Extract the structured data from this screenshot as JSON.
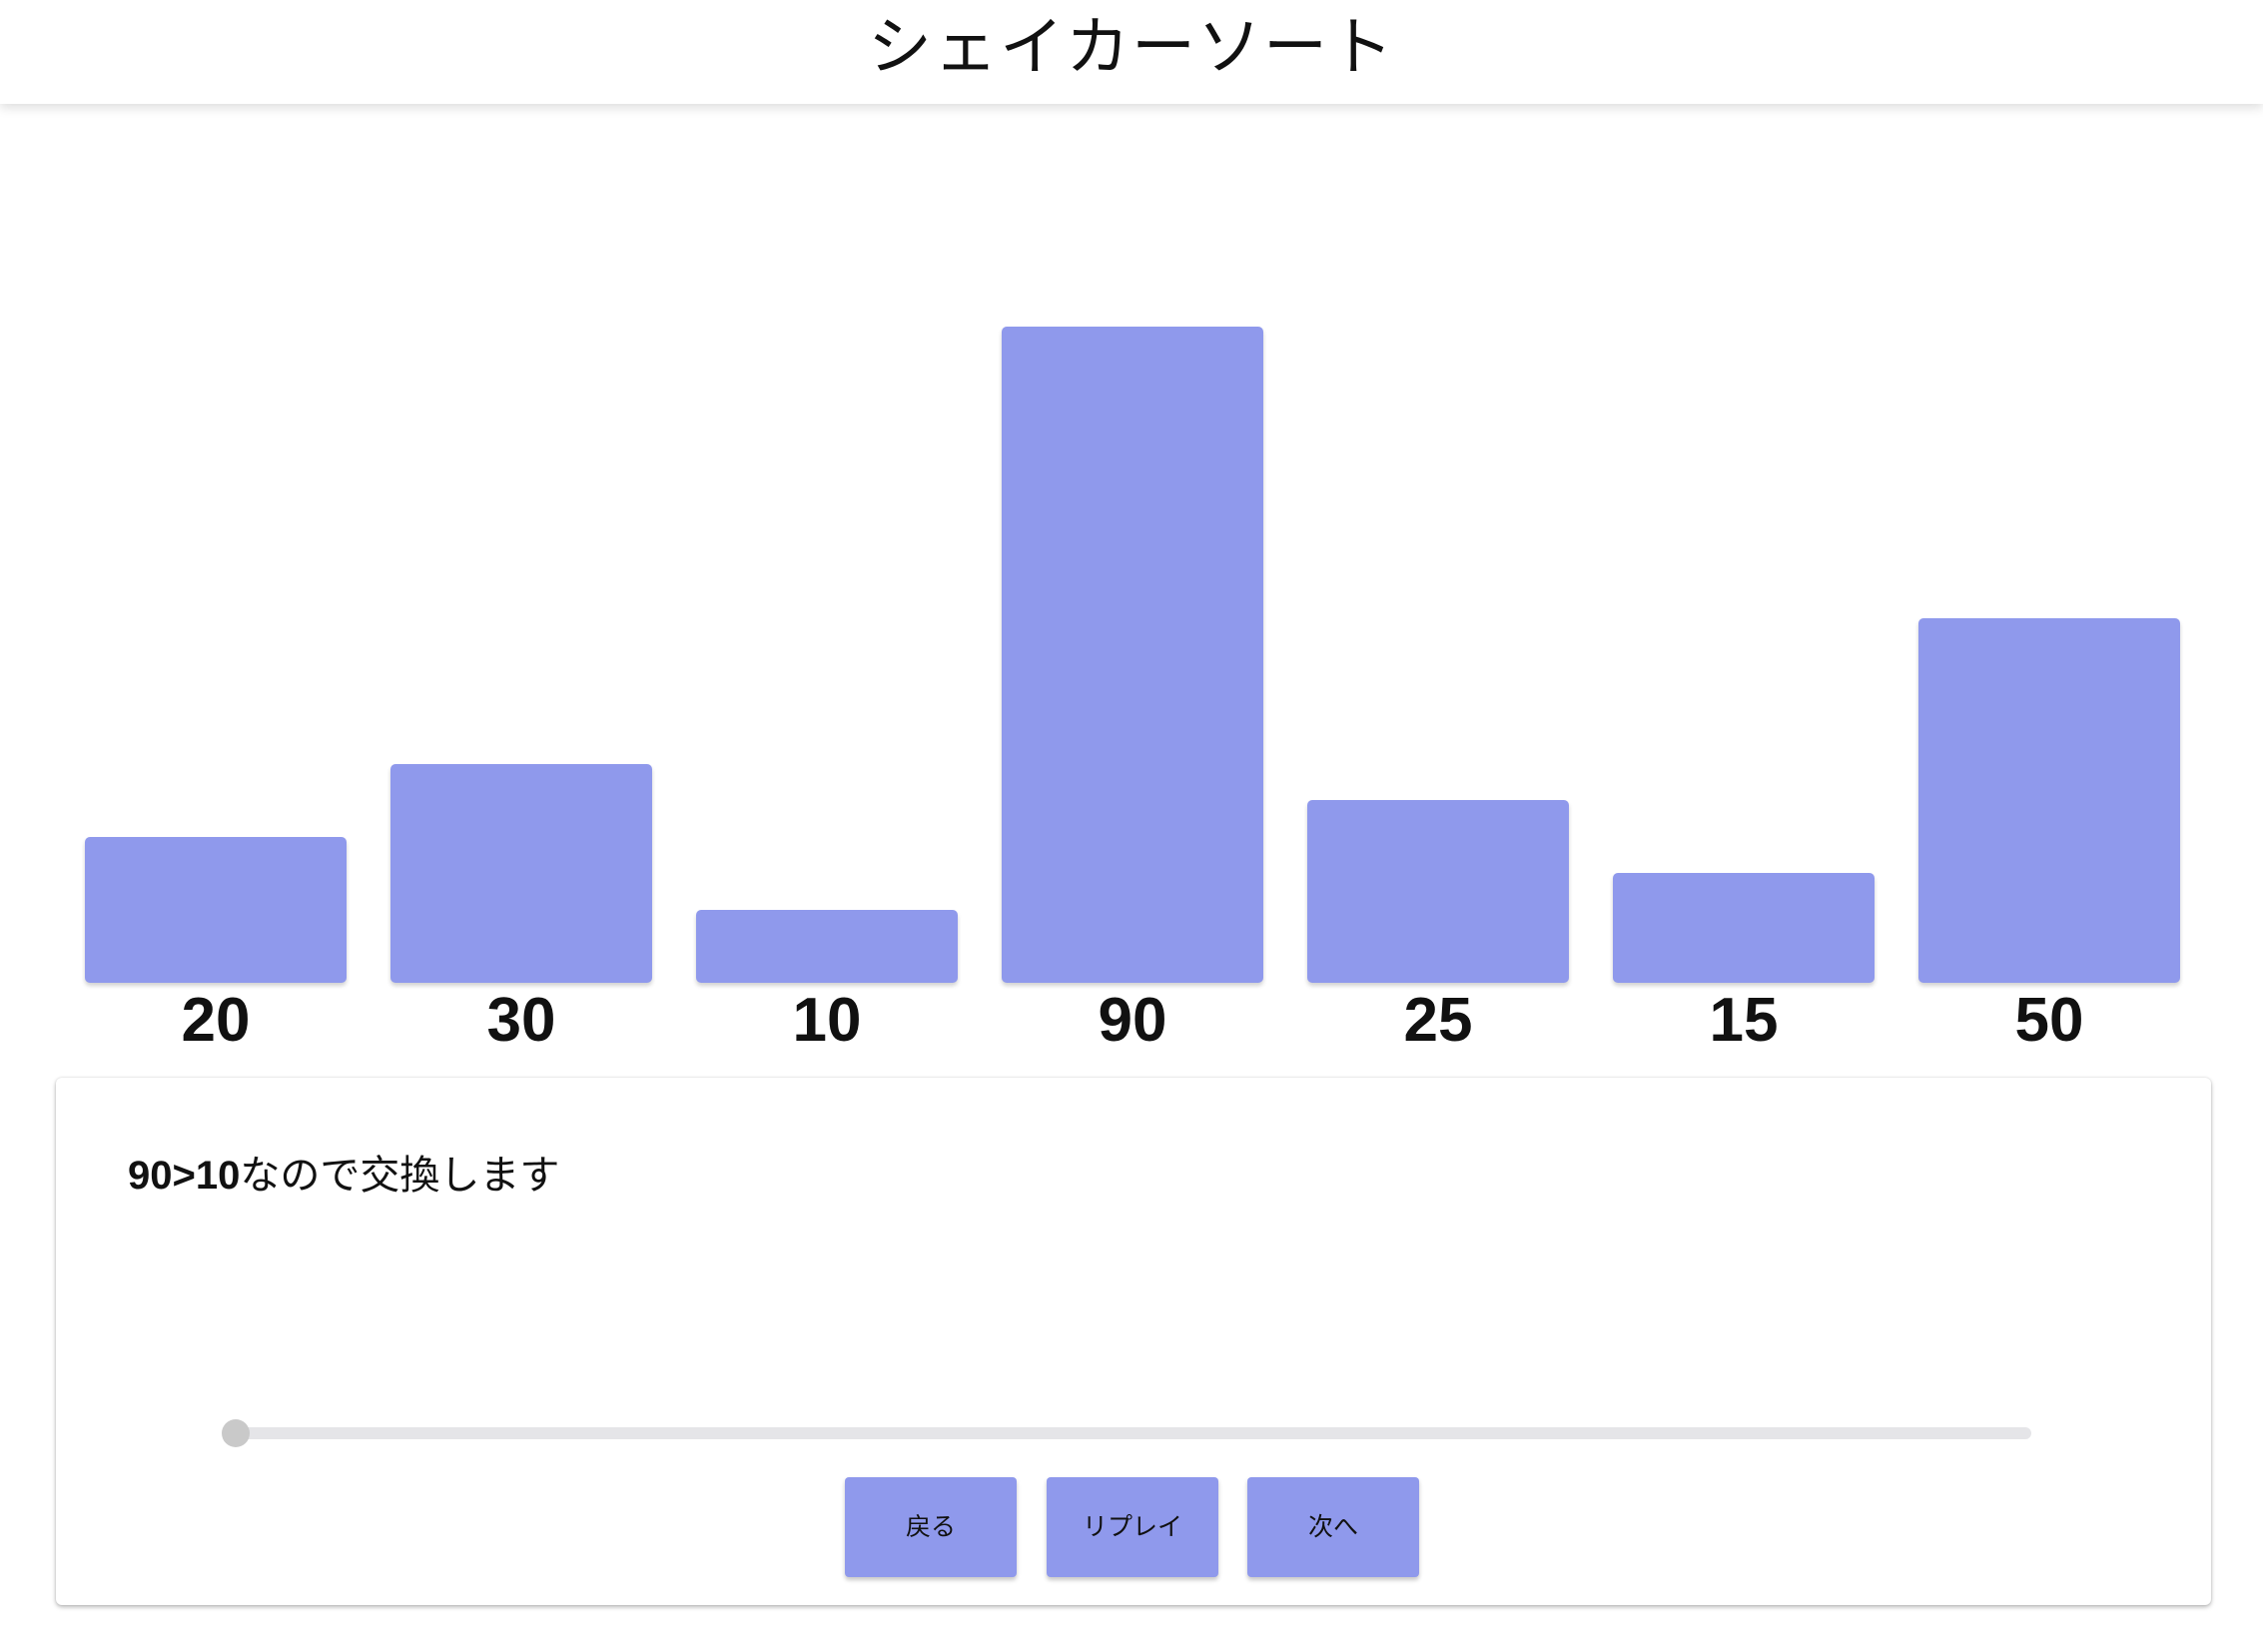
{
  "header": {
    "title": "シェイカーソート"
  },
  "chart_data": {
    "type": "bar",
    "values": [
      20,
      30,
      10,
      90,
      25,
      15,
      50
    ],
    "labels": [
      "20",
      "30",
      "10",
      "90",
      "25",
      "15",
      "50"
    ],
    "ylim": [
      0,
      90
    ],
    "bar_color": "#8f99ec"
  },
  "panel": {
    "message_highlight": "90>10",
    "message_text": "なので交換します",
    "slider": {
      "value": 0,
      "min": 0,
      "max": 1
    },
    "buttons": {
      "back_label": "戻る",
      "replay_label": "リプレイ",
      "next_label": "次へ"
    }
  },
  "colors": {
    "accent": "#8f99ec",
    "slider_track": "#e5e5e8",
    "slider_thumb": "#c9c9c9"
  }
}
